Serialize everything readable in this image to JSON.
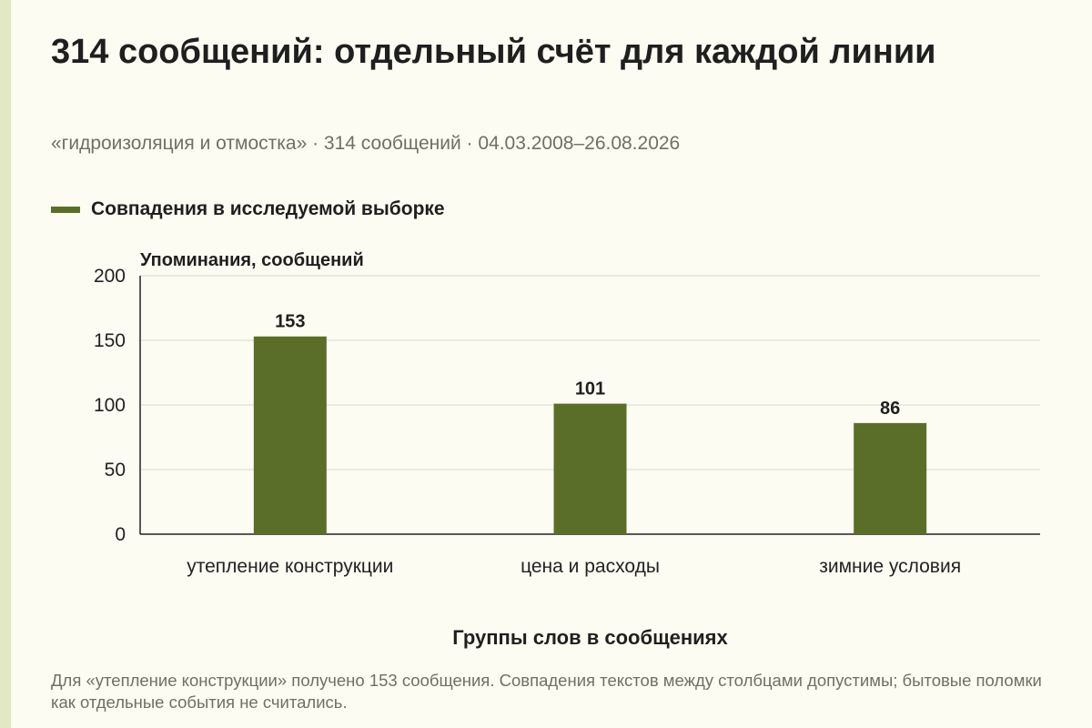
{
  "title": "314 сообщений: отдельный счёт для каждой линии",
  "subtitle": "«гидроизоляция и отмостка» · 314 сообщений · 04.03.2008–26.08.2026",
  "legend": {
    "label": "Совпадения в исследуемой выборке"
  },
  "note": "Для «утепление конструкции» получено 153 сообщения. Совпадения текстов между столбцами допустимы; бытовые поломки как отдельные события не считались.",
  "colors": {
    "bar": "#5b6e29",
    "grid": "#d9d9d0",
    "axis": "#222222",
    "background": "#fdfcf3"
  },
  "chart_data": {
    "type": "bar",
    "ylabel": "Упоминания, сообщений",
    "xlabel": "Группы слов в сообщениях",
    "categories": [
      "утепление конструкции",
      "цена и расходы",
      "зимние условия"
    ],
    "values": [
      153,
      101,
      86
    ],
    "ylim": [
      0,
      200
    ],
    "yticks": [
      0,
      50,
      100,
      150,
      200
    ],
    "grid": true,
    "legend_position": "top-left",
    "series": [
      {
        "name": "Совпадения в исследуемой выборке",
        "values": [
          153,
          101,
          86
        ]
      }
    ]
  }
}
